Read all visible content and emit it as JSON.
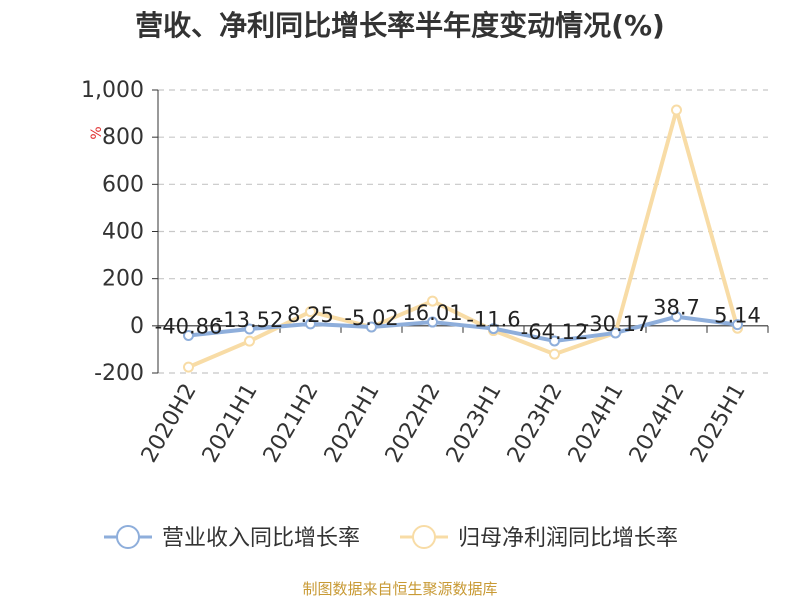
{
  "chart_data": {
    "type": "line",
    "title": "营收、净利同比增长率半年度变动情况(%)",
    "ylabel": "%",
    "ylim": [
      -200,
      1000
    ],
    "yticks": [
      -200,
      0,
      200,
      400,
      600,
      800,
      1000
    ],
    "ytick_labels": [
      "-200",
      "0",
      "200",
      "400",
      "600",
      "800",
      "1,000"
    ],
    "grid": true,
    "legend_position": "bottom",
    "categories": [
      "2020H2",
      "2021H1",
      "2021H2",
      "2022H1",
      "2022H2",
      "2023H1",
      "2023H2",
      "2024H1",
      "2024H2",
      "2025H1"
    ],
    "series": [
      {
        "name": "营业收入同比增长率",
        "color": "#8eaedb",
        "values": [
          -40.86,
          -13.52,
          8.25,
          -5.02,
          16.01,
          -11.6,
          -64.12,
          -30.17,
          38.7,
          5.14
        ],
        "labels": [
          "-40.86",
          "-13.52",
          "8.25",
          "-5.02",
          "16.01",
          "-11.6",
          "-64.12",
          "-30.17",
          "38.7",
          "5.14"
        ]
      },
      {
        "name": "归母净利润同比增长率",
        "color": "#f8dca6",
        "values": [
          -175,
          -65,
          60,
          -5,
          105,
          -20,
          -120,
          -30,
          915,
          -10
        ]
      }
    ]
  },
  "footer": {
    "source": "制图数据来自恒生聚源数据库",
    "source_color": "#c89a35"
  },
  "colors": {
    "axis": "#333333",
    "grid": "#c8c8c8",
    "text": "#333333",
    "ylabel": "#e03030"
  }
}
